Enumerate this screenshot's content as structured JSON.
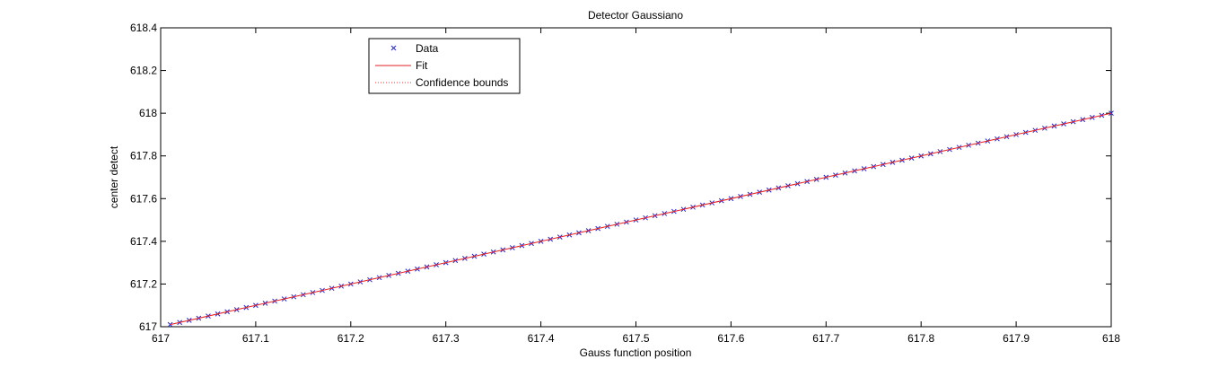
{
  "chart_data": {
    "type": "scatter",
    "title": "Detector Gaussiano",
    "xlabel": "Gauss function position",
    "ylabel": "center detect",
    "xlim": [
      617,
      618
    ],
    "ylim": [
      617,
      618.4
    ],
    "xticks": [
      "617",
      "617.1",
      "617.2",
      "617.3",
      "617.4",
      "617.5",
      "617.6",
      "617.7",
      "617.8",
      "617.9",
      "618"
    ],
    "yticks": [
      "617",
      "617.2",
      "617.4",
      "617.6",
      "617.8",
      "618",
      "618.2",
      "618.4"
    ],
    "grid": false,
    "legend_position": "top-left",
    "legend": [
      "Data",
      "Fit",
      "Confidence bounds"
    ],
    "series": [
      {
        "name": "Data",
        "marker": "x",
        "color": "#2222cc",
        "x_start": 617.01,
        "x_end": 618.0,
        "x_step": 0.01,
        "relation": "y = x"
      },
      {
        "name": "Fit",
        "style": "solid",
        "color": "#e02020",
        "x": [
          617.01,
          618.0
        ],
        "y": [
          617.01,
          618.0
        ]
      },
      {
        "name": "Confidence bounds",
        "style": "dotted",
        "color": "#ff3030",
        "x": [
          617.01,
          618.0
        ],
        "y": [
          617.01,
          618.0
        ]
      }
    ]
  }
}
